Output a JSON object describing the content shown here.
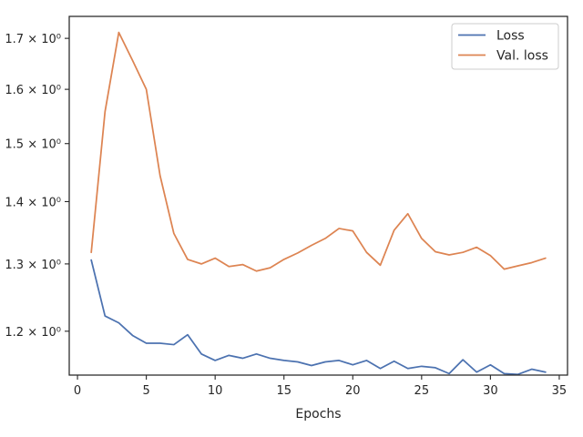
{
  "chart_data": {
    "type": "line",
    "title": "",
    "xlabel": "Epochs",
    "ylabel": "",
    "xlim": [
      -0.6,
      35.6
    ],
    "ylim": [
      1.139,
      1.745
    ],
    "yscale": "log",
    "grid": false,
    "legend": "top-right",
    "xticks": [
      0,
      5,
      10,
      15,
      20,
      25,
      30,
      35
    ],
    "xtick_labels": [
      "0",
      "5",
      "10",
      "15",
      "20",
      "25",
      "30",
      "35"
    ],
    "yticks": [
      1.2,
      1.3,
      1.4,
      1.5,
      1.6,
      1.7
    ],
    "ytick_labels": [
      "1.2 × 10⁰",
      "1.3 × 10⁰",
      "1.4 × 10⁰",
      "1.5 × 10⁰",
      "1.6 × 10⁰",
      "1.7 × 10⁰"
    ],
    "x": [
      1,
      2,
      3,
      4,
      5,
      6,
      7,
      8,
      9,
      10,
      11,
      12,
      13,
      14,
      15,
      16,
      17,
      18,
      19,
      20,
      21,
      22,
      23,
      24,
      25,
      26,
      27,
      28,
      29,
      30,
      31,
      32,
      33,
      34
    ],
    "series": [
      {
        "name": "Loss",
        "color": "#4c72b0",
        "values": [
          1.306,
          1.222,
          1.212,
          1.194,
          1.183,
          1.183,
          1.181,
          1.195,
          1.168,
          1.159,
          1.166,
          1.162,
          1.168,
          1.162,
          1.159,
          1.157,
          1.152,
          1.157,
          1.159,
          1.153,
          1.159,
          1.148,
          1.158,
          1.148,
          1.151,
          1.149,
          1.141,
          1.16,
          1.143,
          1.153,
          1.141,
          1.14,
          1.147,
          1.143
        ]
      },
      {
        "name": "Val. loss",
        "color": "#dd8452",
        "values": [
          1.318,
          1.558,
          1.712,
          1.656,
          1.6,
          1.444,
          1.348,
          1.307,
          1.3,
          1.309,
          1.296,
          1.299,
          1.289,
          1.294,
          1.307,
          1.317,
          1.329,
          1.34,
          1.356,
          1.352,
          1.318,
          1.298,
          1.353,
          1.38,
          1.34,
          1.319,
          1.314,
          1.318,
          1.326,
          1.313,
          1.292,
          1.297,
          1.302,
          1.309
        ]
      }
    ]
  }
}
